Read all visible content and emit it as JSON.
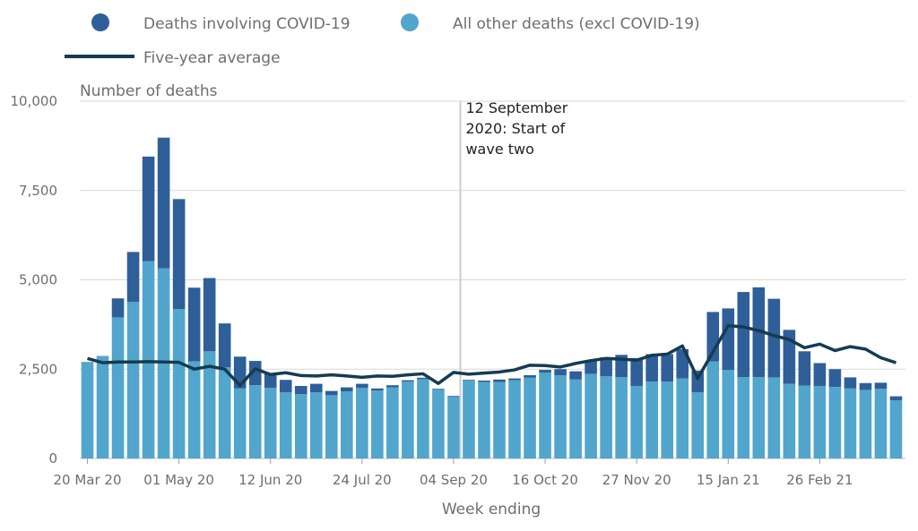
{
  "colors": {
    "covid": "#2f5f98",
    "other": "#52a5cc",
    "average": "#163b52",
    "grid": "#d9d9d9",
    "annotation_line": "#cccccc"
  },
  "legend": {
    "covid": "Deaths involving COVID-19",
    "other": "All other deaths (excl COVID-19)",
    "average": "Five-year average"
  },
  "annotation": {
    "lines": [
      "12 September",
      "2020: Start of",
      "wave two"
    ],
    "week_index": 25
  },
  "chart_data": {
    "type": "bar",
    "stacked": true,
    "ylabel": "Number of deaths",
    "xlabel": "Week ending",
    "ylim": [
      0,
      10000
    ],
    "y_ticks": [
      0,
      2500,
      5000,
      7500,
      10000
    ],
    "y_tick_labels": [
      "0",
      "2,500",
      "5,000",
      "7,500",
      "10,000"
    ],
    "x_tick_labels": [
      {
        "index": 0,
        "label": "20 Mar 20"
      },
      {
        "index": 6,
        "label": "01 May 20"
      },
      {
        "index": 12,
        "label": "12 Jun 20"
      },
      {
        "index": 18,
        "label": "24 Jul 20"
      },
      {
        "index": 24,
        "label": "04 Sep 20"
      },
      {
        "index": 30,
        "label": "16 Oct 20"
      },
      {
        "index": 36,
        "label": "27 Nov 20"
      },
      {
        "index": 42,
        "label": "15 Jan 21"
      },
      {
        "index": 48,
        "label": "26 Feb 21"
      }
    ],
    "grid": true,
    "legend_position": "top",
    "series": [
      {
        "name": "All other deaths (excl COVID-19)",
        "values": [
          2690,
          2870,
          3950,
          4380,
          5520,
          5320,
          4180,
          2720,
          3000,
          2550,
          1960,
          2050,
          1980,
          1850,
          1800,
          1850,
          1770,
          1880,
          1980,
          1900,
          1990,
          2150,
          2220,
          1930,
          1730,
          2180,
          2140,
          2140,
          2190,
          2260,
          2400,
          2330,
          2210,
          2370,
          2300,
          2280,
          2030,
          2150,
          2150,
          2240,
          1850,
          2720,
          2480,
          2280,
          2280,
          2270,
          2090,
          2040,
          2030,
          2000,
          1960,
          1920,
          1950,
          1630
        ]
      },
      {
        "name": "Deaths involving COVID-19",
        "values": [
          10,
          0,
          530,
          1400,
          2930,
          3660,
          3080,
          2060,
          2050,
          1230,
          890,
          680,
          410,
          350,
          230,
          240,
          120,
          110,
          110,
          60,
          60,
          40,
          40,
          20,
          20,
          20,
          40,
          70,
          50,
          70,
          80,
          170,
          230,
          360,
          530,
          620,
          780,
          770,
          770,
          820,
          610,
          1380,
          1720,
          2380,
          2510,
          2200,
          1510,
          960,
          640,
          500,
          310,
          190,
          170,
          110
        ]
      }
    ],
    "average": {
      "name": "Five-year average",
      "values": [
        2800,
        2680,
        2700,
        2700,
        2710,
        2700,
        2690,
        2500,
        2580,
        2500,
        2040,
        2510,
        2350,
        2400,
        2320,
        2310,
        2340,
        2310,
        2270,
        2310,
        2300,
        2340,
        2370,
        2100,
        2410,
        2360,
        2390,
        2420,
        2480,
        2610,
        2600,
        2560,
        2660,
        2740,
        2800,
        2780,
        2750,
        2890,
        2920,
        3150,
        2240,
        2980,
        3720,
        3680,
        3580,
        3440,
        3330,
        3100,
        3200,
        3020,
        3130,
        3060,
        2820,
        2680
      ]
    }
  }
}
